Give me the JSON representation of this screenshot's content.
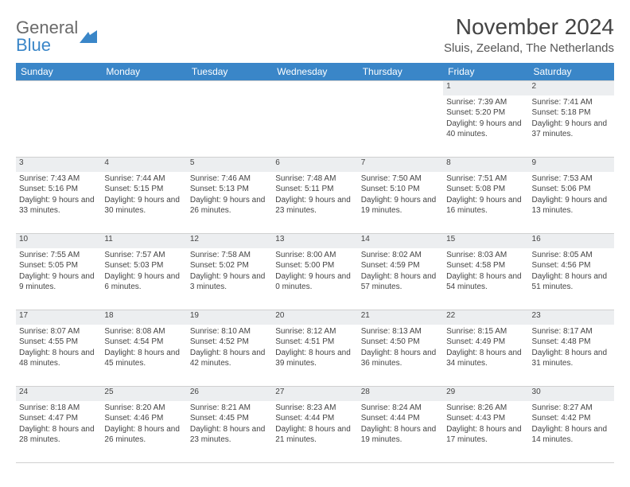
{
  "logo": {
    "text1": "General",
    "text2": "Blue"
  },
  "title": "November 2024",
  "subtitle": "Sluis, Zeeland, The Netherlands",
  "colors": {
    "header_bg": "#3a86c8",
    "header_text": "#ffffff",
    "daynum_bg": "#eceef0",
    "border": "#d0d0d0",
    "text": "#444444"
  },
  "day_headers": [
    "Sunday",
    "Monday",
    "Tuesday",
    "Wednesday",
    "Thursday",
    "Friday",
    "Saturday"
  ],
  "weeks": [
    [
      null,
      null,
      null,
      null,
      null,
      {
        "n": "1",
        "sr": "Sunrise: 7:39 AM",
        "ss": "Sunset: 5:20 PM",
        "dl": "Daylight: 9 hours and 40 minutes."
      },
      {
        "n": "2",
        "sr": "Sunrise: 7:41 AM",
        "ss": "Sunset: 5:18 PM",
        "dl": "Daylight: 9 hours and 37 minutes."
      }
    ],
    [
      {
        "n": "3",
        "sr": "Sunrise: 7:43 AM",
        "ss": "Sunset: 5:16 PM",
        "dl": "Daylight: 9 hours and 33 minutes."
      },
      {
        "n": "4",
        "sr": "Sunrise: 7:44 AM",
        "ss": "Sunset: 5:15 PM",
        "dl": "Daylight: 9 hours and 30 minutes."
      },
      {
        "n": "5",
        "sr": "Sunrise: 7:46 AM",
        "ss": "Sunset: 5:13 PM",
        "dl": "Daylight: 9 hours and 26 minutes."
      },
      {
        "n": "6",
        "sr": "Sunrise: 7:48 AM",
        "ss": "Sunset: 5:11 PM",
        "dl": "Daylight: 9 hours and 23 minutes."
      },
      {
        "n": "7",
        "sr": "Sunrise: 7:50 AM",
        "ss": "Sunset: 5:10 PM",
        "dl": "Daylight: 9 hours and 19 minutes."
      },
      {
        "n": "8",
        "sr": "Sunrise: 7:51 AM",
        "ss": "Sunset: 5:08 PM",
        "dl": "Daylight: 9 hours and 16 minutes."
      },
      {
        "n": "9",
        "sr": "Sunrise: 7:53 AM",
        "ss": "Sunset: 5:06 PM",
        "dl": "Daylight: 9 hours and 13 minutes."
      }
    ],
    [
      {
        "n": "10",
        "sr": "Sunrise: 7:55 AM",
        "ss": "Sunset: 5:05 PM",
        "dl": "Daylight: 9 hours and 9 minutes."
      },
      {
        "n": "11",
        "sr": "Sunrise: 7:57 AM",
        "ss": "Sunset: 5:03 PM",
        "dl": "Daylight: 9 hours and 6 minutes."
      },
      {
        "n": "12",
        "sr": "Sunrise: 7:58 AM",
        "ss": "Sunset: 5:02 PM",
        "dl": "Daylight: 9 hours and 3 minutes."
      },
      {
        "n": "13",
        "sr": "Sunrise: 8:00 AM",
        "ss": "Sunset: 5:00 PM",
        "dl": "Daylight: 9 hours and 0 minutes."
      },
      {
        "n": "14",
        "sr": "Sunrise: 8:02 AM",
        "ss": "Sunset: 4:59 PM",
        "dl": "Daylight: 8 hours and 57 minutes."
      },
      {
        "n": "15",
        "sr": "Sunrise: 8:03 AM",
        "ss": "Sunset: 4:58 PM",
        "dl": "Daylight: 8 hours and 54 minutes."
      },
      {
        "n": "16",
        "sr": "Sunrise: 8:05 AM",
        "ss": "Sunset: 4:56 PM",
        "dl": "Daylight: 8 hours and 51 minutes."
      }
    ],
    [
      {
        "n": "17",
        "sr": "Sunrise: 8:07 AM",
        "ss": "Sunset: 4:55 PM",
        "dl": "Daylight: 8 hours and 48 minutes."
      },
      {
        "n": "18",
        "sr": "Sunrise: 8:08 AM",
        "ss": "Sunset: 4:54 PM",
        "dl": "Daylight: 8 hours and 45 minutes."
      },
      {
        "n": "19",
        "sr": "Sunrise: 8:10 AM",
        "ss": "Sunset: 4:52 PM",
        "dl": "Daylight: 8 hours and 42 minutes."
      },
      {
        "n": "20",
        "sr": "Sunrise: 8:12 AM",
        "ss": "Sunset: 4:51 PM",
        "dl": "Daylight: 8 hours and 39 minutes."
      },
      {
        "n": "21",
        "sr": "Sunrise: 8:13 AM",
        "ss": "Sunset: 4:50 PM",
        "dl": "Daylight: 8 hours and 36 minutes."
      },
      {
        "n": "22",
        "sr": "Sunrise: 8:15 AM",
        "ss": "Sunset: 4:49 PM",
        "dl": "Daylight: 8 hours and 34 minutes."
      },
      {
        "n": "23",
        "sr": "Sunrise: 8:17 AM",
        "ss": "Sunset: 4:48 PM",
        "dl": "Daylight: 8 hours and 31 minutes."
      }
    ],
    [
      {
        "n": "24",
        "sr": "Sunrise: 8:18 AM",
        "ss": "Sunset: 4:47 PM",
        "dl": "Daylight: 8 hours and 28 minutes."
      },
      {
        "n": "25",
        "sr": "Sunrise: 8:20 AM",
        "ss": "Sunset: 4:46 PM",
        "dl": "Daylight: 8 hours and 26 minutes."
      },
      {
        "n": "26",
        "sr": "Sunrise: 8:21 AM",
        "ss": "Sunset: 4:45 PM",
        "dl": "Daylight: 8 hours and 23 minutes."
      },
      {
        "n": "27",
        "sr": "Sunrise: 8:23 AM",
        "ss": "Sunset: 4:44 PM",
        "dl": "Daylight: 8 hours and 21 minutes."
      },
      {
        "n": "28",
        "sr": "Sunrise: 8:24 AM",
        "ss": "Sunset: 4:44 PM",
        "dl": "Daylight: 8 hours and 19 minutes."
      },
      {
        "n": "29",
        "sr": "Sunrise: 8:26 AM",
        "ss": "Sunset: 4:43 PM",
        "dl": "Daylight: 8 hours and 17 minutes."
      },
      {
        "n": "30",
        "sr": "Sunrise: 8:27 AM",
        "ss": "Sunset: 4:42 PM",
        "dl": "Daylight: 8 hours and 14 minutes."
      }
    ]
  ]
}
